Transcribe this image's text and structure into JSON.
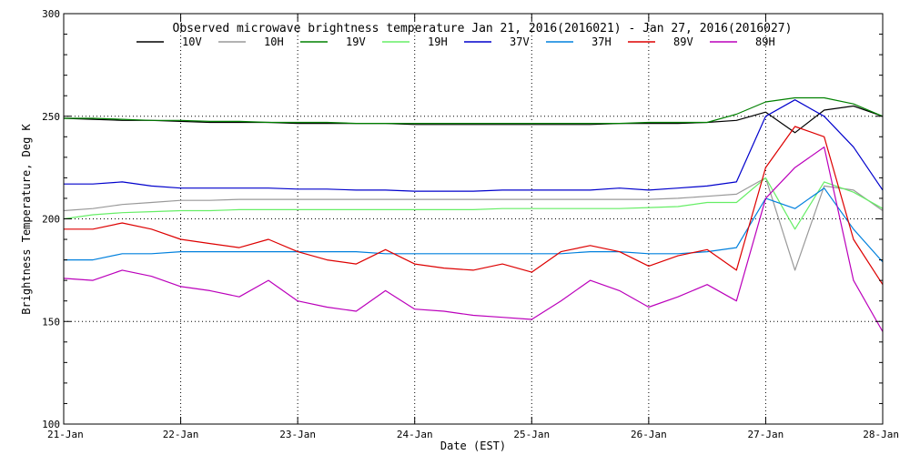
{
  "chart_data": {
    "type": "line",
    "title": "Observed microwave brightness temperature Jan 21, 2016(2016021) - Jan 27, 2016(2016027)",
    "xlabel": "Date (EST)",
    "ylabel": "Brightness Temperature, Deg K",
    "xlim": [
      0,
      7
    ],
    "ylim": [
      100,
      300
    ],
    "x_tick_values": [
      0,
      1,
      2,
      3,
      4,
      5,
      6,
      7
    ],
    "x_tick_labels": [
      "21-Jan",
      "22-Jan",
      "23-Jan",
      "24-Jan",
      "25-Jan",
      "26-Jan",
      "27-Jan",
      "28-Jan"
    ],
    "y_tick_values": [
      100,
      150,
      200,
      250,
      300
    ],
    "y_tick_labels": [
      "100",
      "150",
      "200",
      "250",
      "300"
    ],
    "grid": "dotted",
    "legend_position": "top",
    "x": [
      0,
      0.25,
      0.5,
      0.75,
      1,
      1.25,
      1.5,
      1.75,
      2,
      2.25,
      2.5,
      2.75,
      3,
      3.25,
      3.5,
      3.75,
      4,
      4.25,
      4.5,
      4.75,
      5,
      5.25,
      5.5,
      5.75,
      6,
      6.25,
      6.5,
      6.75,
      7
    ],
    "series": [
      {
        "name": "10V",
        "color": "#000000",
        "values": [
          249,
          248.5,
          248,
          248,
          247.5,
          247,
          247,
          247,
          246.5,
          246.5,
          246.5,
          246.5,
          246,
          246,
          246,
          246,
          246,
          246,
          246,
          246.5,
          246.5,
          246.5,
          247,
          248,
          252,
          242,
          253,
          255,
          250
        ]
      },
      {
        "name": "10H",
        "color": "#999999",
        "values": [
          204,
          205,
          207,
          208,
          209,
          209,
          209.5,
          209.5,
          209.5,
          209.5,
          209.5,
          209.5,
          209.5,
          209.5,
          209.5,
          209.5,
          209.5,
          209.5,
          209.5,
          209.5,
          209.5,
          210,
          211,
          212,
          220,
          175,
          216,
          214,
          204
        ]
      },
      {
        "name": "19V",
        "color": "#008000",
        "values": [
          249,
          249,
          248.5,
          248,
          248,
          247.5,
          247.5,
          247,
          247,
          247,
          246.5,
          246.5,
          246.5,
          246.5,
          246.5,
          246.5,
          246.5,
          246.5,
          246.5,
          246.5,
          247,
          247,
          247,
          251,
          257,
          259,
          259,
          256,
          250
        ]
      },
      {
        "name": "19H",
        "color": "#66ee66",
        "values": [
          200,
          202,
          203,
          203.5,
          204,
          204,
          204.5,
          204.5,
          204.5,
          204.5,
          204.5,
          204.5,
          204.5,
          204.5,
          204.5,
          205,
          205,
          205,
          205,
          205,
          205.5,
          206,
          208,
          208,
          220,
          195,
          218,
          213,
          205
        ]
      },
      {
        "name": "37V",
        "color": "#0000cc",
        "values": [
          217,
          217,
          218,
          216,
          215,
          215,
          215,
          215,
          214.5,
          214.5,
          214,
          214,
          213.5,
          213.5,
          213.5,
          214,
          214,
          214,
          214,
          215,
          214,
          215,
          216,
          218,
          250,
          258,
          250,
          235,
          214
        ]
      },
      {
        "name": "37H",
        "color": "#0080dd",
        "values": [
          180,
          180,
          183,
          183,
          184,
          184,
          184,
          184,
          184,
          184,
          184,
          183,
          183,
          183,
          183,
          183,
          183,
          183,
          184,
          184,
          183,
          183,
          184,
          186,
          210,
          205,
          215,
          195,
          179
        ]
      },
      {
        "name": "89V",
        "color": "#dd0000",
        "values": [
          195,
          195,
          198,
          195,
          190,
          188,
          186,
          190,
          184,
          180,
          178,
          185,
          178,
          176,
          175,
          178,
          174,
          184,
          187,
          184,
          177,
          182,
          185,
          175,
          225,
          245,
          240,
          190,
          168
        ]
      },
      {
        "name": "89H",
        "color": "#bb00bb",
        "values": [
          171,
          170,
          175,
          172,
          167,
          165,
          162,
          170,
          160,
          157,
          155,
          165,
          156,
          155,
          153,
          152,
          151,
          160,
          170,
          165,
          157,
          162,
          168,
          160,
          210,
          225,
          235,
          170,
          145
        ]
      }
    ]
  }
}
